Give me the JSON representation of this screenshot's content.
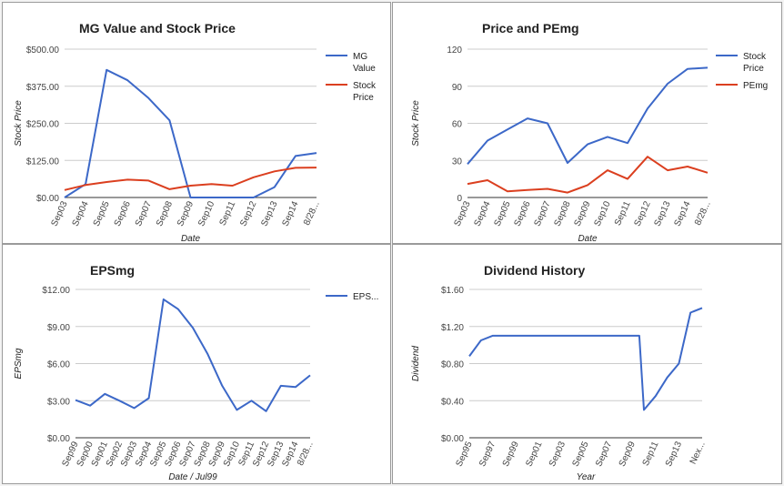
{
  "chart_data": [
    {
      "type": "line",
      "title": "MG Value and Stock Price",
      "xlabel": "Date",
      "ylabel": "Stock Price",
      "ylim": [
        0,
        500
      ],
      "yticks": [
        "$500.00",
        "$375.00",
        "$250.00",
        "$125.00",
        "$0.00"
      ],
      "categories": [
        "Sep03",
        "Sep04",
        "Sep05",
        "Sep06",
        "Sep07",
        "Sep08",
        "Sep09",
        "Sep10",
        "Sep11",
        "Sep12",
        "Sep13",
        "Sep14",
        "8/28..."
      ],
      "legend_position": "right",
      "grid": true,
      "series": [
        {
          "name": "MG Value",
          "legend": [
            "MG",
            "Value"
          ],
          "color": "#3c68c8",
          "values": [
            0,
            45,
            430,
            395,
            335,
            260,
            0,
            0,
            0,
            0,
            35,
            140,
            150
          ]
        },
        {
          "name": "Stock Price",
          "legend": [
            "Stock",
            "Price"
          ],
          "color": "#db3f1f",
          "values": [
            25,
            42,
            52,
            60,
            57,
            28,
            40,
            45,
            40,
            68,
            88,
            100,
            101
          ]
        }
      ]
    },
    {
      "type": "line",
      "title": "Price and PEmg",
      "xlabel": "Date",
      "ylabel": "Stock Price",
      "ylim": [
        0,
        120
      ],
      "yticks": [
        "120",
        "90",
        "60",
        "30",
        "0"
      ],
      "categories": [
        "Sep03",
        "Sep04",
        "Sep05",
        "Sep06",
        "Sep07",
        "Sep08",
        "Sep09",
        "Sep10",
        "Sep11",
        "Sep12",
        "Sep13",
        "Sep14",
        "8/28..."
      ],
      "legend_position": "right",
      "grid": true,
      "series": [
        {
          "name": "Stock Price",
          "legend": [
            "Stock",
            "Price"
          ],
          "color": "#3c68c8",
          "values": [
            27,
            46,
            55,
            64,
            60,
            28,
            43,
            49,
            44,
            72,
            92,
            104,
            105
          ]
        },
        {
          "name": "PEmg",
          "legend": [
            "PEmg"
          ],
          "color": "#db3f1f",
          "values": [
            11,
            14,
            5,
            6,
            7,
            4,
            10,
            22,
            15,
            33,
            22,
            25,
            20
          ]
        }
      ]
    },
    {
      "type": "line",
      "title": "EPSmg",
      "xlabel": "Date / Jul99",
      "ylabel": "EPSmg",
      "ylim": [
        0,
        12
      ],
      "yticks": [
        "$12.00",
        "$9.00",
        "$6.00",
        "$3.00",
        "$0.00"
      ],
      "categories": [
        "Sep99",
        "Sep00",
        "Sep01",
        "Sep02",
        "Sep03",
        "Sep04",
        "Sep05",
        "Sep06",
        "Sep07",
        "Sep08",
        "Sep09",
        "Sep10",
        "Sep11",
        "Sep12",
        "Sep13",
        "Sep14",
        "8/28..."
      ],
      "legend_position": "right",
      "grid": true,
      "series": [
        {
          "name": "EPS...",
          "legend": [
            "EPS..."
          ],
          "color": "#3c68c8",
          "values": [
            3.05,
            2.6,
            3.55,
            3.0,
            2.4,
            3.2,
            11.2,
            10.4,
            8.9,
            6.8,
            4.2,
            2.25,
            3.0,
            2.15,
            4.2,
            4.1,
            5.05
          ]
        }
      ]
    },
    {
      "type": "line",
      "title": "Dividend History",
      "xlabel": "Year",
      "ylabel": "Dividend",
      "ylim": [
        0,
        1.6
      ],
      "yticks": [
        "$1.60",
        "$1.20",
        "$0.80",
        "$0.40",
        "$0.00"
      ],
      "categories": [
        "Sep95",
        "Sep97",
        "Sep99",
        "Sep01",
        "Sep03",
        "Sep05",
        "Sep07",
        "Sep09",
        "Sep11",
        "Sep13",
        "Nex..."
      ],
      "legend_position": "none",
      "grid": true,
      "series": [
        {
          "name": "",
          "legend": [],
          "color": "#3c68c8",
          "x": [
            0,
            0.5,
            1,
            1.5,
            2,
            2.5,
            3,
            3.5,
            4,
            4.5,
            5,
            5.5,
            6,
            6.5,
            7,
            7.3,
            7.5,
            8,
            8.5,
            9,
            9.5,
            10
          ],
          "values": [
            0.88,
            1.05,
            1.1,
            1.1,
            1.1,
            1.1,
            1.1,
            1.1,
            1.1,
            1.1,
            1.1,
            1.1,
            1.1,
            1.1,
            1.1,
            1.1,
            0.3,
            0.45,
            0.65,
            0.8,
            1.35,
            1.4
          ]
        }
      ]
    }
  ]
}
